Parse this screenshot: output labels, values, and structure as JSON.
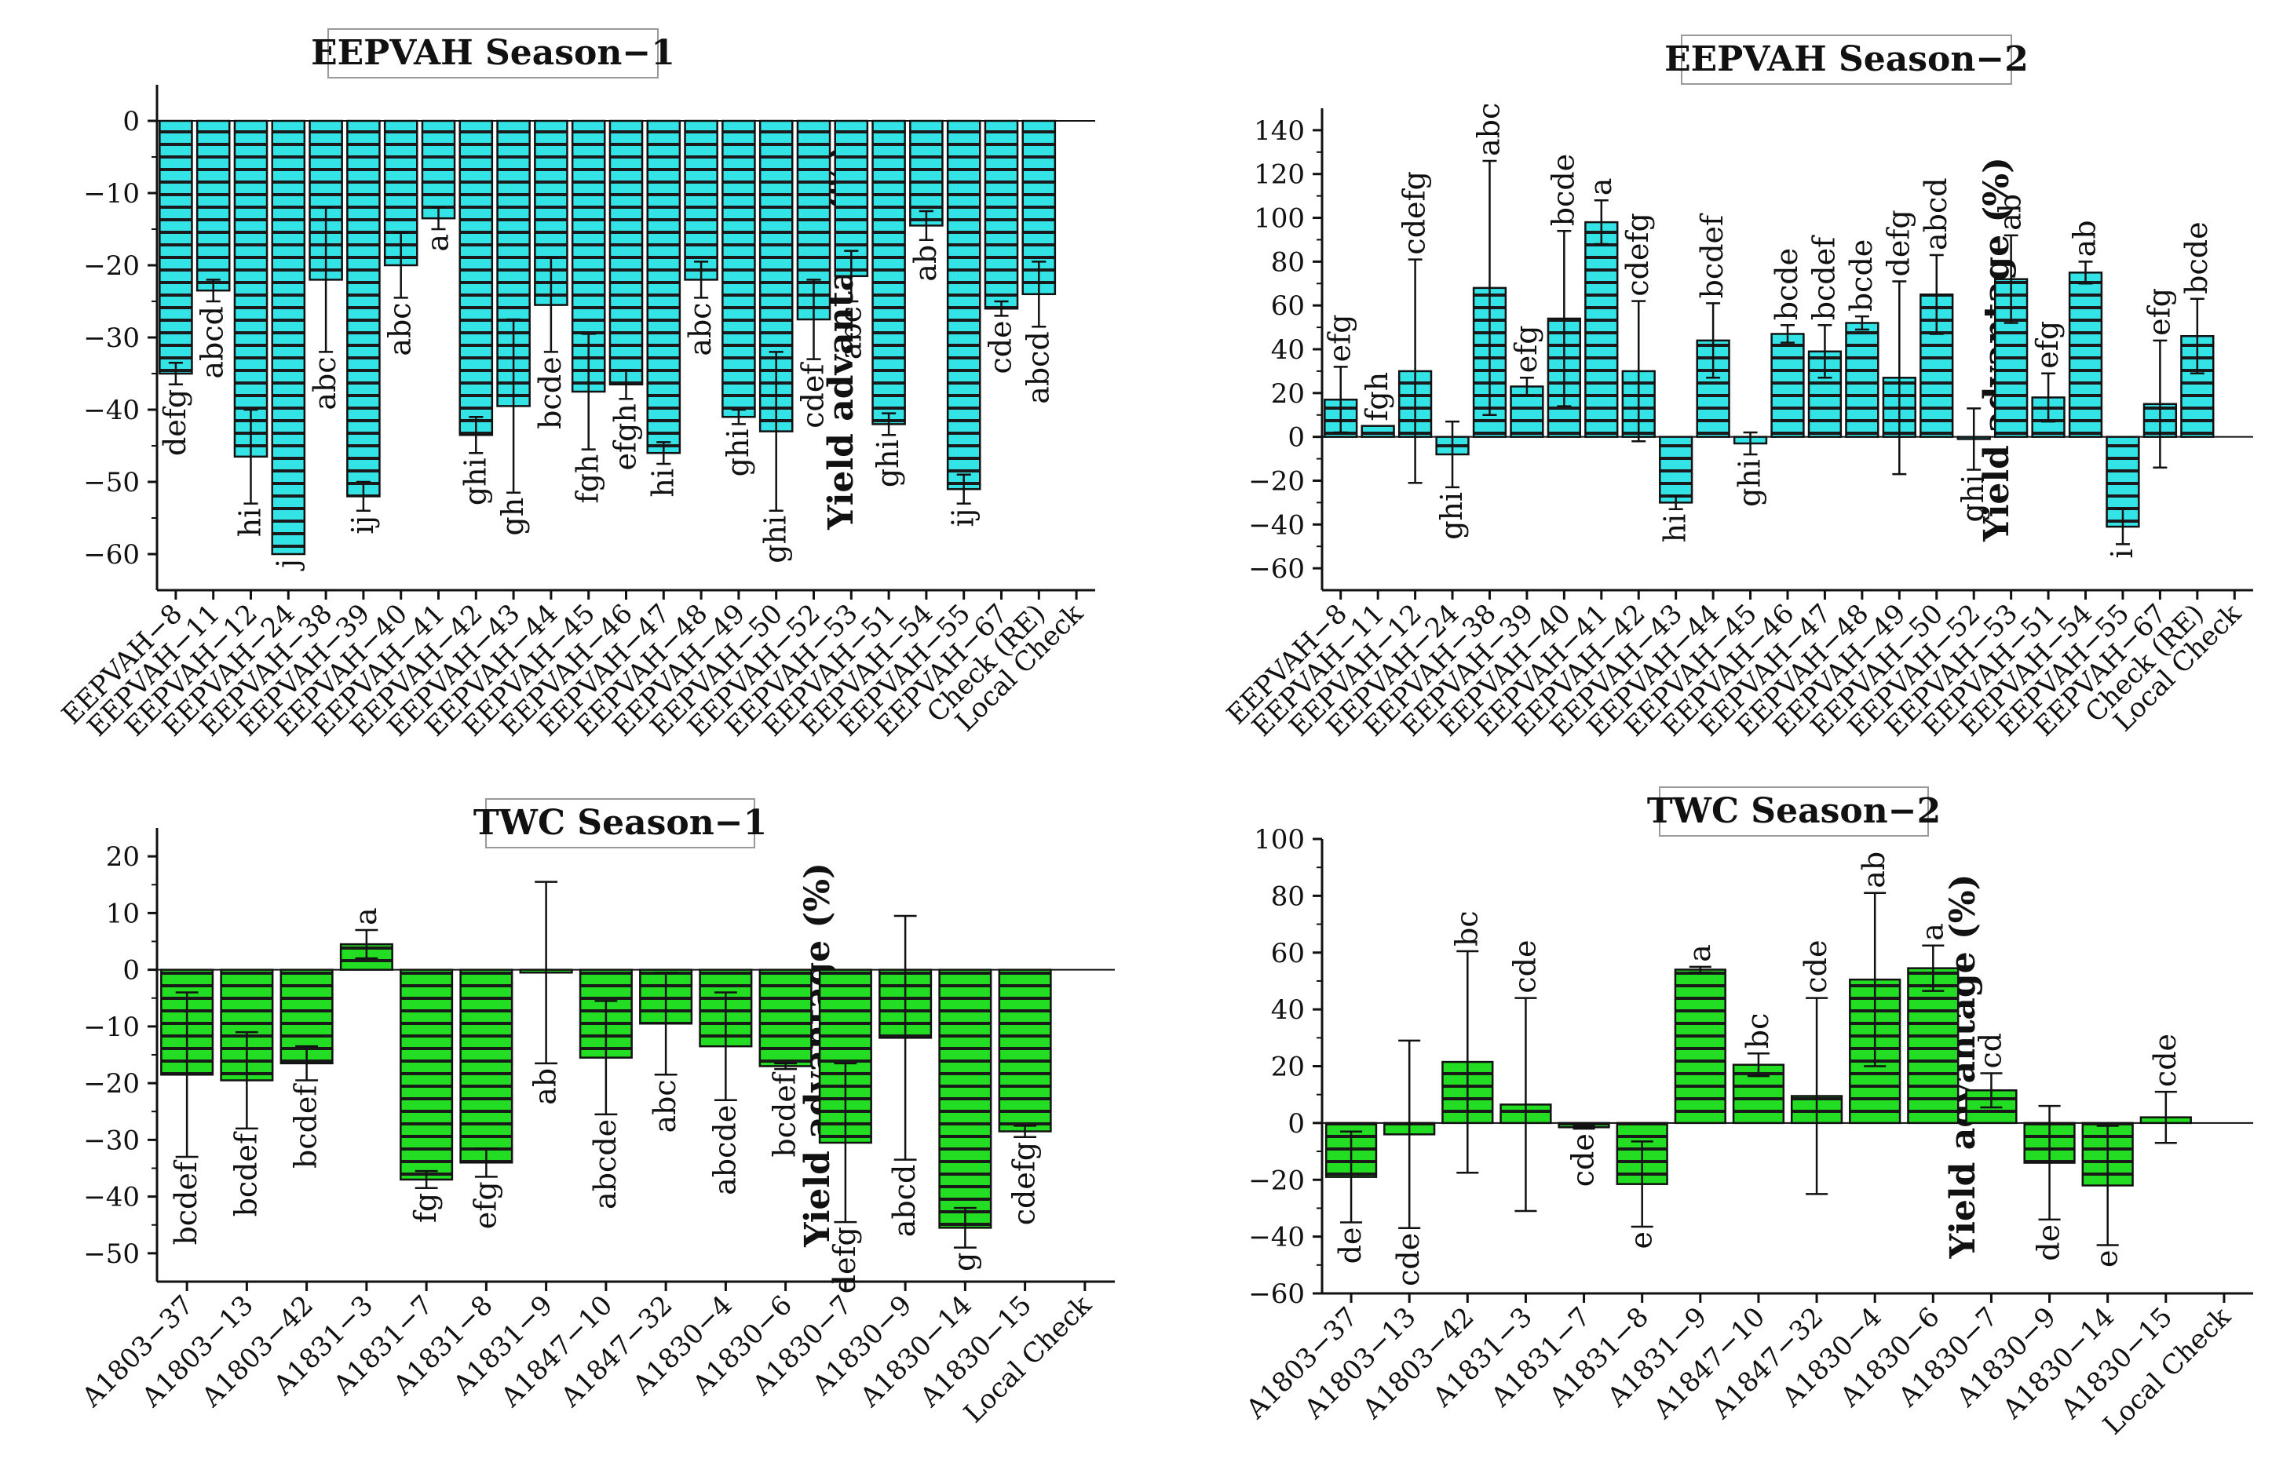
{
  "chart_data": [
    {
      "type": "bar",
      "title": "EEPVAH Season−1",
      "ylabel": "Yield advantage (%)",
      "xlabel": "",
      "ylim": [
        -65,
        5
      ],
      "yticks": [
        0,
        -10,
        -20,
        -30,
        -40,
        -50,
        -60
      ],
      "fill_color": "#33E3E6",
      "categories": [
        "EEPVAH−8",
        "EEPVAH−11",
        "EEPVAH−12",
        "EEPVAH−24",
        "EEPVAH−38",
        "EEPVAH−39",
        "EEPVAH−40",
        "EEPVAH−41",
        "EEPVAH−42",
        "EEPVAH−43",
        "EEPVAH−44",
        "EEPVAH−45",
        "EEPVAH−46",
        "EEPVAH−47",
        "EEPVAH−48",
        "EEPVAH−49",
        "EEPVAH−50",
        "EEPVAH−52",
        "EEPVAH−53",
        "EEPVAH−51",
        "EEPVAH−54",
        "EEPVAH−55",
        "EEPVAH−67",
        "Check (RE)",
        "Local Check"
      ],
      "values": [
        -35,
        -23.5,
        -46.5,
        -60,
        -22,
        -52,
        -20,
        -13.5,
        -43.5,
        -39.5,
        -25.5,
        -37.5,
        -36.5,
        -46,
        -22,
        -41,
        -43,
        -27.5,
        -21.5,
        -42,
        -14.5,
        -51,
        -26,
        -24,
        null
      ],
      "errors": [
        1.5,
        1.5,
        6.5,
        0,
        10,
        2,
        4.5,
        1.5,
        2.5,
        12,
        6.5,
        8,
        2,
        1.5,
        2.5,
        1,
        11,
        5.5,
        3.5,
        1.5,
        2,
        2,
        1,
        4.5,
        null
      ],
      "labels": [
        "defg",
        "abcd",
        "hi",
        "j",
        "abc",
        "ij",
        "abc",
        "a",
        "ghi",
        "gh",
        "bcde",
        "fgh",
        "efgh",
        "hi",
        "abc",
        "ghi",
        "ghi",
        "cdef",
        "abc",
        "ghi",
        "ab",
        "ij",
        "cde",
        "abcd",
        ""
      ]
    },
    {
      "type": "bar",
      "title": "EEPVAH Season−2",
      "ylabel": "Yield advantage (%)",
      "xlabel": "",
      "ylim": [
        -70,
        150
      ],
      "yticks": [
        140,
        120,
        100,
        80,
        60,
        40,
        20,
        0,
        -20,
        -40,
        -60
      ],
      "fill_color": "#33E3E6",
      "categories": [
        "EEPVAH−8",
        "EEPVAH−11",
        "EEPVAH−12",
        "EEPVAH−24",
        "EEPVAH−38",
        "EEPVAH−39",
        "EEPVAH−40",
        "EEPVAH−41",
        "EEPVAH−42",
        "EEPVAH−43",
        "EEPVAH−44",
        "EEPVAH−45",
        "EEPVAH−46",
        "EEPVAH−47",
        "EEPVAH−48",
        "EEPVAH−49",
        "EEPVAH−50",
        "EEPVAH−52",
        "EEPVAH−53",
        "EEPVAH−51",
        "EEPVAH−54",
        "EEPVAH−55",
        "EEPVAH−67",
        "Check (RE)",
        "Local Check"
      ],
      "values": [
        17,
        5,
        30,
        -8,
        68,
        23,
        54,
        98,
        30,
        -30,
        44,
        -3,
        47,
        39,
        52,
        27,
        65,
        -1,
        72,
        18,
        75,
        -41,
        15,
        46,
        null
      ],
      "errors": [
        15,
        0,
        51,
        15,
        58,
        4,
        40,
        10,
        32,
        3,
        17,
        5,
        4,
        12,
        3,
        44,
        18,
        14,
        20,
        11,
        5,
        8,
        29,
        17,
        null
      ],
      "labels": [
        "efg",
        "fgh",
        "cdefg",
        "ghi",
        "abc",
        "efg",
        "bcde",
        "a",
        "cdefg",
        "hi",
        "bcdef",
        "ghi",
        "bcde",
        "bcdef",
        "bcde",
        "defg",
        "abcd",
        "ghi",
        "ab",
        "efg",
        "ab",
        "i",
        "efg",
        "bcde",
        ""
      ]
    },
    {
      "type": "bar",
      "title": "TWC Season−1",
      "ylabel": "Yield advantage (%)",
      "xlabel": "",
      "ylim": [
        -55,
        25
      ],
      "yticks": [
        20,
        10,
        0,
        -10,
        -20,
        -30,
        -40,
        -50
      ],
      "fill_color": "#22DD22",
      "categories": [
        "A1803−37",
        "A1803−13",
        "A1803−42",
        "A1831−3",
        "A1831−7",
        "A1831−8",
        "A1831−9",
        "A1847−10",
        "A1847−32",
        "A1830−4",
        "A1830−6",
        "A1830−7",
        "A1830−9",
        "A1830−14",
        "A1830−15",
        "Local Check"
      ],
      "values": [
        -18.5,
        -19.5,
        -16.5,
        4.5,
        -37,
        -34,
        -0.5,
        -15.5,
        -9.5,
        -13.5,
        -17,
        -30.5,
        -12,
        -45.5,
        -28.5,
        null
      ],
      "errors": [
        14.5,
        8.5,
        3,
        2.5,
        1.5,
        2.5,
        16,
        10,
        9,
        9.5,
        0.5,
        14,
        21.5,
        3.5,
        1,
        null
      ],
      "labels": [
        "bcdef",
        "bcdef",
        "bcdef",
        "a",
        "fg",
        "efg",
        "ab",
        "abcde",
        "abc",
        "abcde",
        "bcdef",
        "defg",
        "abcd",
        "g",
        "cdefg",
        ""
      ]
    },
    {
      "type": "bar",
      "title": "TWC Season−2",
      "ylabel": "Yield advantage (%)",
      "xlabel": "",
      "ylim": [
        -60,
        100
      ],
      "yticks": [
        100,
        80,
        60,
        40,
        20,
        0,
        -20,
        -40,
        -60
      ],
      "fill_color": "#22DD22",
      "categories": [
        "A1803−37",
        "A1803−13",
        "A1803−42",
        "A1831−3",
        "A1831−7",
        "A1831−8",
        "A1831−9",
        "A1847−10",
        "A1847−32",
        "A1830−4",
        "A1830−6",
        "A1830−7",
        "A1830−9",
        "A1830−14",
        "A1830−15",
        "Local Check"
      ],
      "values": [
        -19,
        -4,
        21.5,
        6.5,
        -1.5,
        -21.5,
        54,
        20.5,
        9.5,
        50.5,
        54.5,
        11.5,
        -14,
        -22,
        2,
        null
      ],
      "errors": [
        16,
        33,
        39,
        37.5,
        0.5,
        15,
        1,
        4,
        34.5,
        30.5,
        8,
        6,
        20,
        21,
        9,
        null
      ],
      "labels": [
        "de",
        "cde",
        "bc",
        "cde",
        "cde",
        "e",
        "a",
        "bc",
        "cde",
        "ab",
        "a",
        "cd",
        "de",
        "e",
        "cde",
        ""
      ]
    }
  ]
}
